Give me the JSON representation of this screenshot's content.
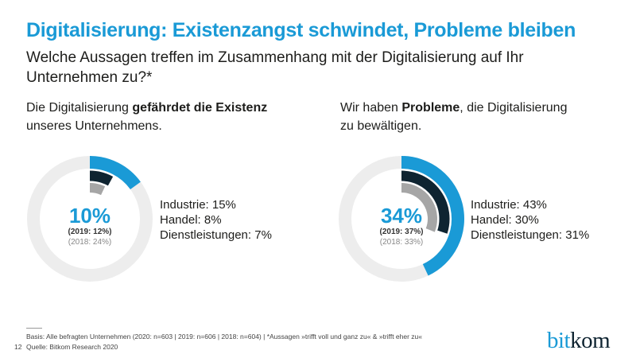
{
  "header": {
    "title": "Digitalisierung: Existenzangst schwindet, Probleme bleiben",
    "subtitle": "Welche Aussagen treffen im Zusammenhang mit der Digitalisierung auf Ihr Unternehmen zu?*"
  },
  "colors": {
    "Industrie": "#1a9ad6",
    "Handel": "#0f2431",
    "Dienstleistungen": "#a6a6a6",
    "track": "#ededed"
  },
  "chart_data": [
    {
      "type": "donut",
      "title_pre": "Die Digitalisierung ",
      "title_bold": "gefährdet die Existenz",
      "title_post": " unseres Unternehmens.",
      "total": "10%",
      "total_value": 10,
      "y2019": "(2019: 12%)",
      "y2018": "(2018: 24%)",
      "series": [
        {
          "name": "Industrie",
          "value": 15,
          "label": "Industrie: 15%"
        },
        {
          "name": "Handel",
          "value": 8,
          "label": "Handel: 8%"
        },
        {
          "name": "Dienstleistungen",
          "value": 7,
          "label": "Dienstleistungen: 7%"
        }
      ]
    },
    {
      "type": "donut",
      "title_pre": "Wir haben ",
      "title_bold": "Probleme",
      "title_post": ", die Digitalisierung zu bewältigen.",
      "total": "34%",
      "total_value": 34,
      "y2019": "(2019: 37%)",
      "y2018": "(2018: 33%)",
      "series": [
        {
          "name": "Industrie",
          "value": 43,
          "label": "Industrie: 43%"
        },
        {
          "name": "Handel",
          "value": 30,
          "label": "Handel: 30%"
        },
        {
          "name": "Dienstleistungen",
          "value": 31,
          "label": "Dienstleistungen: 31%"
        }
      ]
    }
  ],
  "footer": {
    "basis": "Basis: Alle befragten Unternehmen (2020: n=603 | 2019: n=606 | 2018: n=604) | *Aussagen »trifft voll und ganz zu« & »trifft eher zu«",
    "source": "Quelle: Bitkom Research 2020",
    "page": "12",
    "logo": "bitkom",
    "logo_a": "bit",
    "logo_b": "kom"
  }
}
